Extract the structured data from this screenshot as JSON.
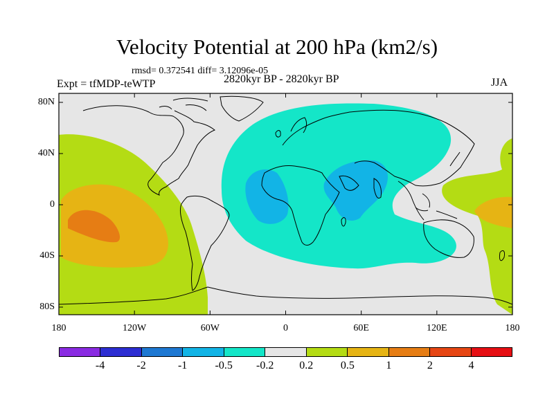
{
  "title": "Velocity Potential at 200 hPa (km2/s)",
  "stats": "rmsd= 0.372541 diff= 3.12096e-05",
  "experiment": "Expt = tfMDP-teWTP",
  "period": "2820kyr BP - 2820kyr BP",
  "season": "JJA",
  "lat_ticks": [
    "80N",
    "40N",
    "0",
    "40S",
    "80S"
  ],
  "lon_ticks": [
    "180",
    "120W",
    "60W",
    "0",
    "60E",
    "120E",
    "180"
  ],
  "colorbar": {
    "labels": [
      "-4",
      "-2",
      "-1",
      "-0.5",
      "-0.2",
      "0.2",
      "0.5",
      "1",
      "2",
      "4"
    ],
    "colors": [
      "#8a2be2",
      "#2d2ed2",
      "#1e78d2",
      "#12b4e6",
      "#14e6c8",
      "#e6e6e6",
      "#b4dc14",
      "#e6b414",
      "#e67d14",
      "#e64614",
      "#e60f14"
    ]
  },
  "colors": {
    "ocean_background": "#e6e6e6",
    "coastline": "#000000"
  }
}
